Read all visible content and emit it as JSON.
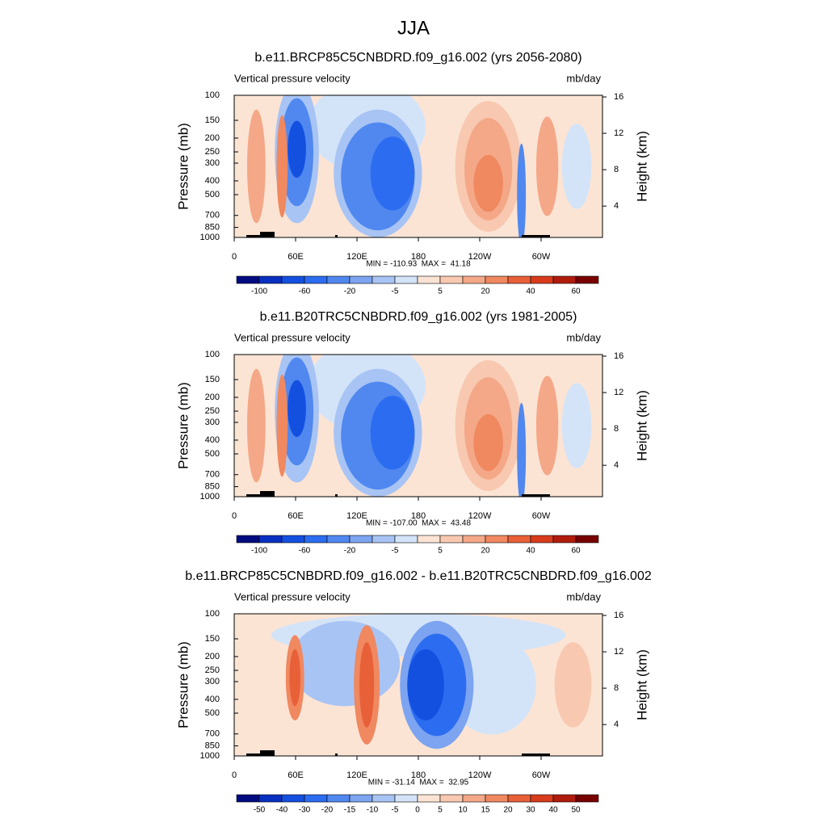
{
  "title": "JJA",
  "chart_data": [
    {
      "type": "contour",
      "title": "b.e11.BRCP85C5CNBDRD.f09_g16.002 (yrs 2056-2080)",
      "left_label": "Vertical pressure velocity",
      "right_label": "mb/day",
      "ylabel": "Pressure (mb)",
      "y2label": "Height (km)",
      "xlim": [
        0,
        360
      ],
      "xticks": [
        0,
        {
          "value": 60,
          "label": "60E"
        },
        {
          "value": 120,
          "label": "120E"
        },
        180,
        {
          "value": 240,
          "label": "120W"
        },
        {
          "value": 300,
          "label": "60W"
        }
      ],
      "ylim": [
        1000,
        100
      ],
      "log_y": true,
      "yticks": [
        100,
        150,
        200,
        250,
        300,
        400,
        500,
        700,
        850,
        1000
      ],
      "y2lim": [
        0.55,
        16.18
      ],
      "y2ticks": [
        4,
        8,
        12,
        16
      ],
      "stats": "MIN = -110.93  MAX =  41.18",
      "colorbar": {
        "colors": [
          "#000c80",
          "#0830c0",
          "#1450e0",
          "#2c6cf0",
          "#5088f0",
          "#7ca4f0",
          "#a8c4f4",
          "#d4e4f8",
          "#fce4d4",
          "#f8c8b0",
          "#f4a888",
          "#f08860",
          "#e86038",
          "#d83c1c",
          "#b01c0c",
          "#780000"
        ],
        "levels": [
          -100,
          null,
          -60,
          null,
          -20,
          null,
          -5,
          null,
          5,
          null,
          20,
          null,
          40,
          null,
          60
        ]
      }
    },
    {
      "type": "contour",
      "title": "b.e11.B20TRC5CNBDRD.f09_g16.002 (yrs 1981-2005)",
      "left_label": "Vertical pressure velocity",
      "right_label": "mb/day",
      "ylabel": "Pressure (mb)",
      "y2label": "Height (km)",
      "xlim": [
        0,
        360
      ],
      "xticks": [
        0,
        {
          "value": 60,
          "label": "60E"
        },
        {
          "value": 120,
          "label": "120E"
        },
        180,
        {
          "value": 240,
          "label": "120W"
        },
        {
          "value": 300,
          "label": "60W"
        }
      ],
      "ylim": [
        1000,
        100
      ],
      "log_y": true,
      "yticks": [
        100,
        150,
        200,
        250,
        300,
        400,
        500,
        700,
        850,
        1000
      ],
      "y2lim": [
        0.55,
        16.18
      ],
      "y2ticks": [
        4,
        8,
        12,
        16
      ],
      "stats": "MIN = -107.00  MAX =  43.48",
      "colorbar": {
        "colors": [
          "#000c80",
          "#0830c0",
          "#1450e0",
          "#2c6cf0",
          "#5088f0",
          "#7ca4f0",
          "#a8c4f4",
          "#d4e4f8",
          "#fce4d4",
          "#f8c8b0",
          "#f4a888",
          "#f08860",
          "#e86038",
          "#d83c1c",
          "#b01c0c",
          "#780000"
        ],
        "levels": [
          -100,
          null,
          -60,
          null,
          -20,
          null,
          -5,
          null,
          5,
          null,
          20,
          null,
          40,
          null,
          60
        ]
      }
    },
    {
      "type": "contour",
      "title": "b.e11.BRCP85C5CNBDRD.f09_g16.002 - b.e11.B20TRC5CNBDRD.f09_g16.002",
      "left_label": "Vertical pressure velocity",
      "right_label": "mb/day",
      "ylabel": "Pressure (mb)",
      "y2label": "Height (km)",
      "xlim": [
        0,
        360
      ],
      "xticks": [
        0,
        {
          "value": 60,
          "label": "60E"
        },
        {
          "value": 120,
          "label": "120E"
        },
        180,
        {
          "value": 240,
          "label": "120W"
        },
        {
          "value": 300,
          "label": "60W"
        }
      ],
      "ylim": [
        1000,
        100
      ],
      "log_y": true,
      "yticks": [
        100,
        150,
        200,
        250,
        300,
        400,
        500,
        700,
        850,
        1000
      ],
      "y2lim": [
        0.55,
        16.18
      ],
      "y2ticks": [
        4,
        8,
        12,
        16
      ],
      "stats": "MIN = -31.14  MAX =  32.95",
      "colorbar": {
        "colors": [
          "#000c80",
          "#0830c0",
          "#1450e0",
          "#2c6cf0",
          "#5088f0",
          "#7ca4f0",
          "#a8c4f4",
          "#d4e4f8",
          "#fce4d4",
          "#f8c8b0",
          "#f4a888",
          "#f08860",
          "#e86038",
          "#d83c1c",
          "#b01c0c",
          "#780000"
        ],
        "levels": [
          -50,
          -40,
          -30,
          -20,
          -15,
          -10,
          -5,
          0,
          5,
          10,
          15,
          20,
          30,
          40,
          50
        ]
      }
    }
  ]
}
